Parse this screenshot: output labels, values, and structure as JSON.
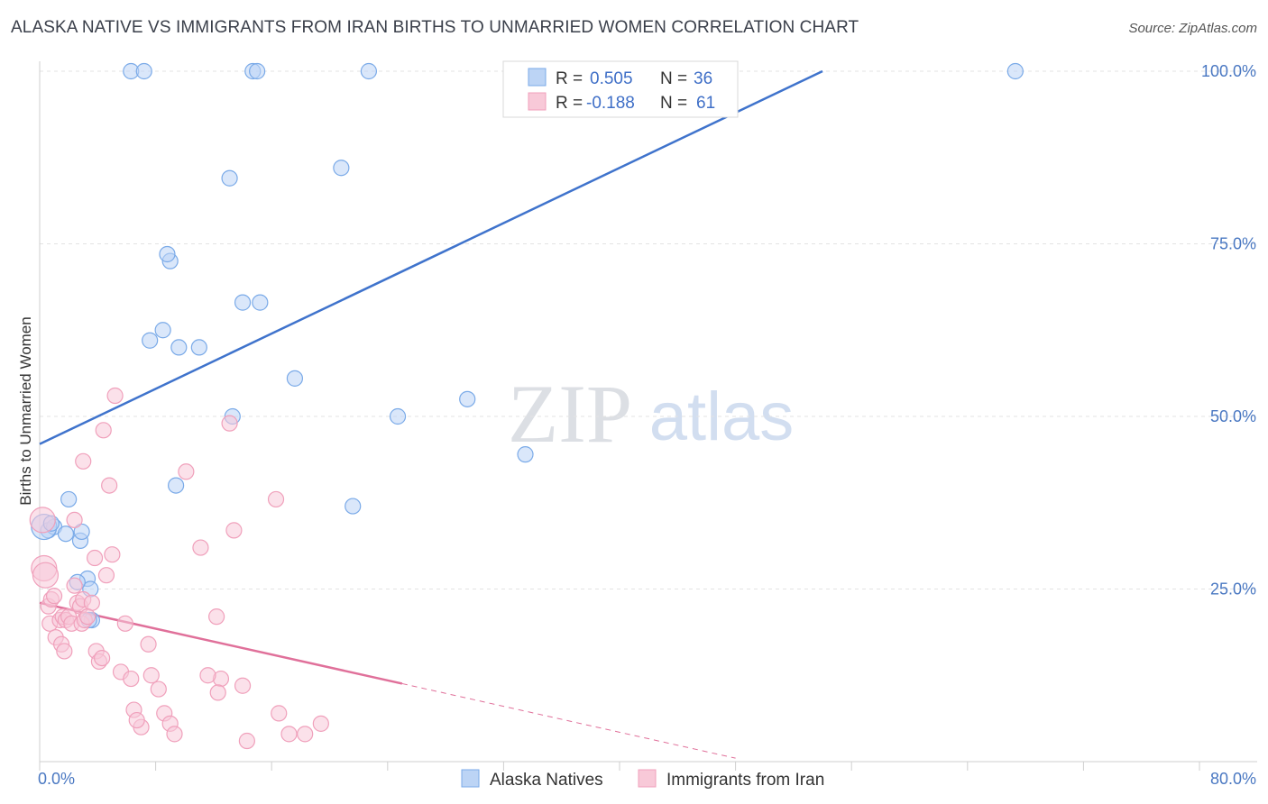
{
  "title": "ALASKA NATIVE VS IMMIGRANTS FROM IRAN BIRTHS TO UNMARRIED WOMEN CORRELATION CHART",
  "source": "Source: ZipAtlas.com",
  "watermark": {
    "zip": "ZIP",
    "atlas": "atlas"
  },
  "chart_data": {
    "type": "scatter",
    "ylabel": "Births to Unmarried Women",
    "xlim": [
      0,
      80
    ],
    "ylim": [
      0,
      100
    ],
    "x_tick_labels": [
      {
        "value": 0,
        "label": "0.0%"
      },
      {
        "value": 80,
        "label": "80.0%"
      }
    ],
    "y_tick_labels": [
      {
        "value": 25,
        "label": "25.0%"
      },
      {
        "value": 50,
        "label": "50.0%"
      },
      {
        "value": 75,
        "label": "75.0%"
      },
      {
        "value": 100,
        "label": "100.0%"
      }
    ],
    "grid": true,
    "legend": {
      "placement": "top-center",
      "entries": [
        {
          "r_label": "R =",
          "r": "0.505",
          "n_label": "N =",
          "n": "36"
        },
        {
          "r_label": "R =",
          "r": "-0.188",
          "n_label": "N =",
          "n": "61"
        }
      ]
    },
    "series": [
      {
        "name": "Alaska Natives",
        "color": "#7aaae8",
        "fill": "#bcd4f5",
        "trend": {
          "x": [
            0,
            54
          ],
          "y": [
            46,
            100
          ]
        },
        "points": [
          [
            6.3,
            100
          ],
          [
            7.2,
            100
          ],
          [
            14.7,
            100
          ],
          [
            15.0,
            100
          ],
          [
            22.7,
            100
          ],
          [
            67.3,
            100
          ],
          [
            20.8,
            86
          ],
          [
            13.1,
            84.5
          ],
          [
            9.0,
            72.5
          ],
          [
            8.8,
            73.5
          ],
          [
            17.6,
            55.5
          ],
          [
            13.3,
            50
          ],
          [
            24.7,
            50
          ],
          [
            29.5,
            52.5
          ],
          [
            33.5,
            44.5
          ],
          [
            8.5,
            62.5
          ],
          [
            7.6,
            61
          ],
          [
            9.6,
            60
          ],
          [
            11.0,
            60
          ],
          [
            15.2,
            66.5
          ],
          [
            14.0,
            66.5
          ],
          [
            21.6,
            37
          ],
          [
            9.4,
            40
          ],
          [
            2.0,
            38
          ],
          [
            0.6,
            33.5
          ],
          [
            1.0,
            34
          ],
          [
            1.8,
            33
          ],
          [
            2.8,
            32
          ],
          [
            2.9,
            33.3
          ],
          [
            3.3,
            26.5
          ],
          [
            3.5,
            25
          ],
          [
            3.6,
            20.5
          ],
          [
            3.4,
            20.5
          ],
          [
            0.3,
            34
          ],
          [
            2.6,
            26
          ],
          [
            0.8,
            34.5
          ]
        ]
      },
      {
        "name": "Immigrants from Iran",
        "color": "#f0a0bb",
        "fill": "#f8c9d8",
        "trend": {
          "x": [
            0,
            25
          ],
          "y": [
            23,
            11.3
          ]
        },
        "trend_extension": {
          "x": [
            25,
            48
          ],
          "y": [
            11.3,
            0.5
          ]
        },
        "points": [
          [
            0.2,
            35
          ],
          [
            0.3,
            28
          ],
          [
            0.4,
            27
          ],
          [
            0.6,
            22.5
          ],
          [
            0.7,
            20
          ],
          [
            0.8,
            23.5
          ],
          [
            1.0,
            24
          ],
          [
            1.1,
            18
          ],
          [
            1.4,
            20.5
          ],
          [
            1.6,
            21
          ],
          [
            1.8,
            20.5
          ],
          [
            1.5,
            17
          ],
          [
            1.7,
            16
          ],
          [
            2.0,
            21
          ],
          [
            2.2,
            20
          ],
          [
            2.4,
            25.5
          ],
          [
            2.6,
            23
          ],
          [
            2.8,
            22.5
          ],
          [
            3.0,
            23.5
          ],
          [
            2.9,
            20
          ],
          [
            3.1,
            20.5
          ],
          [
            3.6,
            23
          ],
          [
            3.3,
            21
          ],
          [
            3.9,
            16
          ],
          [
            4.1,
            14.5
          ],
          [
            4.3,
            15
          ],
          [
            3.8,
            29.5
          ],
          [
            4.6,
            27
          ],
          [
            5.0,
            30
          ],
          [
            5.6,
            13
          ],
          [
            5.9,
            20
          ],
          [
            6.3,
            12
          ],
          [
            6.5,
            7.5
          ],
          [
            7.0,
            5
          ],
          [
            6.7,
            6
          ],
          [
            7.5,
            17
          ],
          [
            7.7,
            12.5
          ],
          [
            8.2,
            10.5
          ],
          [
            8.6,
            7
          ],
          [
            9.0,
            5.5
          ],
          [
            9.3,
            4
          ],
          [
            10.1,
            42
          ],
          [
            11.1,
            31
          ],
          [
            12.2,
            21
          ],
          [
            12.5,
            12
          ],
          [
            11.6,
            12.5
          ],
          [
            12.3,
            10
          ],
          [
            13.1,
            49
          ],
          [
            13.4,
            33.5
          ],
          [
            14.0,
            11
          ],
          [
            16.3,
            38
          ],
          [
            16.5,
            7
          ],
          [
            18.3,
            4
          ],
          [
            19.4,
            5.5
          ],
          [
            14.3,
            3
          ],
          [
            17.2,
            4
          ],
          [
            5.2,
            53
          ],
          [
            4.4,
            48
          ],
          [
            3.0,
            43.5
          ],
          [
            4.8,
            40
          ],
          [
            2.4,
            35
          ]
        ]
      }
    ]
  }
}
